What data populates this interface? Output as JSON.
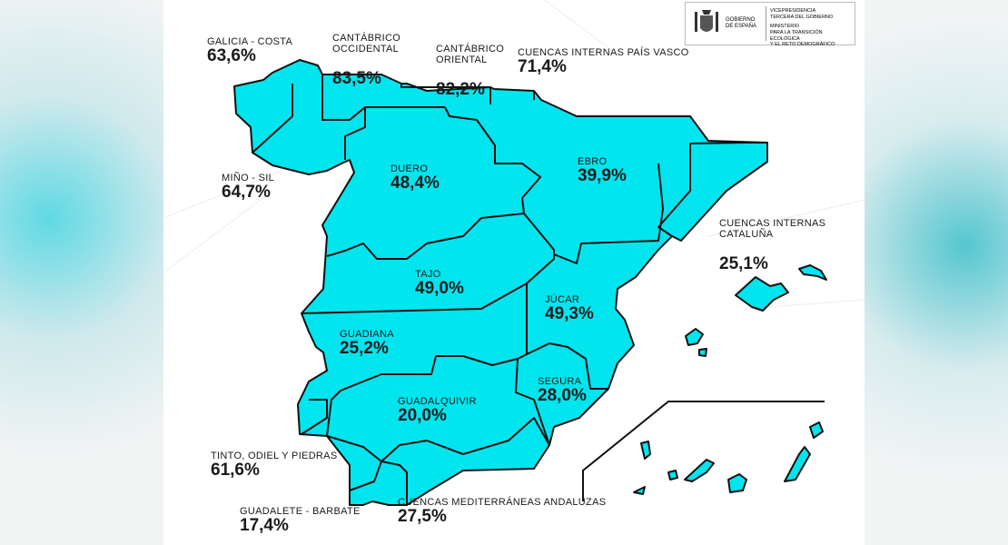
{
  "logo": {
    "line1": "GOBIERNO",
    "line2": "DE ESPAÑA",
    "vp1": "VICEPRESIDENCIA",
    "vp2": "TERCERA DEL GOBIERNO",
    "min1": "MINISTERIO",
    "min2": "PARA LA TRANSICIÓN ECOLÓGICA",
    "min3": "Y EL RETO DEMOGRÁFICO"
  },
  "colors": {
    "basin_fill": "#00e5ee",
    "stroke": "#111111",
    "background": "#ffffff"
  },
  "basins": [
    {
      "name": "GALICIA - COSTA",
      "value": "63,6%"
    },
    {
      "name": "CANTÁBRICO\nOCCIDENTAL",
      "value": "83,5%"
    },
    {
      "name": "CANTÁBRICO\nORIENTAL",
      "value": "82,2%"
    },
    {
      "name": "CUENCAS INTERNAS PAÍS VASCO",
      "value": "71,4%"
    },
    {
      "name": "MIÑO - SIL",
      "value": "64,7%"
    },
    {
      "name": "DUERO",
      "value": "48,4%"
    },
    {
      "name": "EBRO",
      "value": "39,9%"
    },
    {
      "name": "CUENCAS INTERNAS\nCATALUÑA",
      "value": "25,1%"
    },
    {
      "name": "TAJO",
      "value": "49,0%"
    },
    {
      "name": "JÚCAR",
      "value": "49,3%"
    },
    {
      "name": "GUADIANA",
      "value": "25,2%"
    },
    {
      "name": "SEGURA",
      "value": "28,0%"
    },
    {
      "name": "GUADALQUIVIR",
      "value": "20,0%"
    },
    {
      "name": "TINTO, ODIEL Y PIEDRAS",
      "value": "61,6%"
    },
    {
      "name": "GUADALETE - BARBATE",
      "value": "17,4%"
    },
    {
      "name": "CUENCAS MEDITERRÁNEAS ANDALUZAS",
      "value": "27,5%"
    }
  ]
}
